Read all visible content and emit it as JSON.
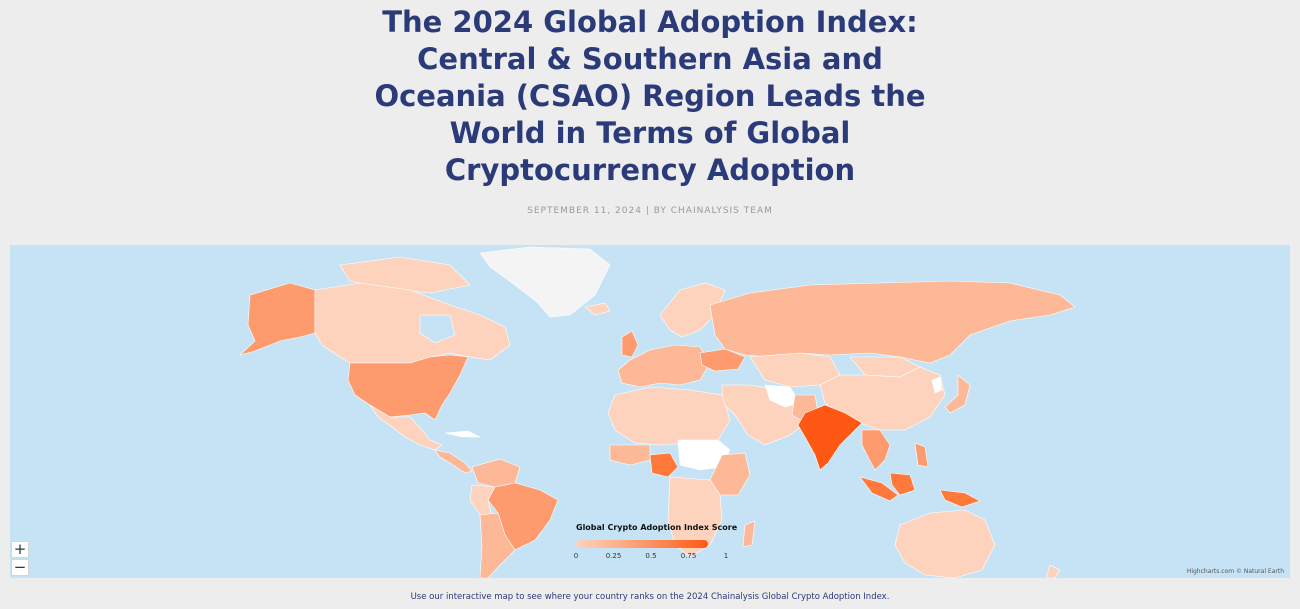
{
  "header": {
    "title_lines": [
      "The 2024 Global Adoption Index:",
      "Central & Southern Asia and",
      "Oceania (CSAO) Region Leads the",
      "World in Terms of Global",
      "Cryptocurrency Adoption"
    ],
    "byline": "SEPTEMBER 11, 2024 | BY CHAINALYSIS TEAM"
  },
  "map": {
    "legend_title": "Global Crypto Adoption Index Score",
    "legend_ticks": [
      "0",
      "0.25",
      "0.5",
      "0.75",
      "1"
    ],
    "legend_colors": [
      "#fdd3bd",
      "#fd9b6e",
      "#ff5814"
    ],
    "ocean_color": "#c6e3f5",
    "zoom_in": "+",
    "zoom_out": "−",
    "credits": "Highcharts.com © Natural Earth"
  },
  "caption": "Use our interactive map to see where your country ranks on the 2024 Chainalysis Global Crypto Adoption Index."
}
